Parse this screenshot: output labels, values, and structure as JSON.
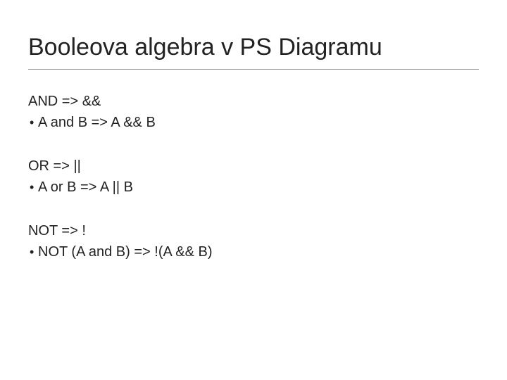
{
  "title": "Booleova algebra v PS Diagramu",
  "groups": [
    {
      "head": "AND => &&",
      "bullet": "A and B => A && B"
    },
    {
      "head": "OR => ||",
      "bullet": "A or B => A || B"
    },
    {
      "head": "NOT => !",
      "bullet": "NOT (A and B) => !(A && B)"
    }
  ],
  "colors": {
    "text": "#222222",
    "rule": "#999999",
    "background": "#ffffff"
  },
  "fonts": {
    "title_size_pt": 34,
    "body_size_pt": 20,
    "family": "Arial"
  }
}
